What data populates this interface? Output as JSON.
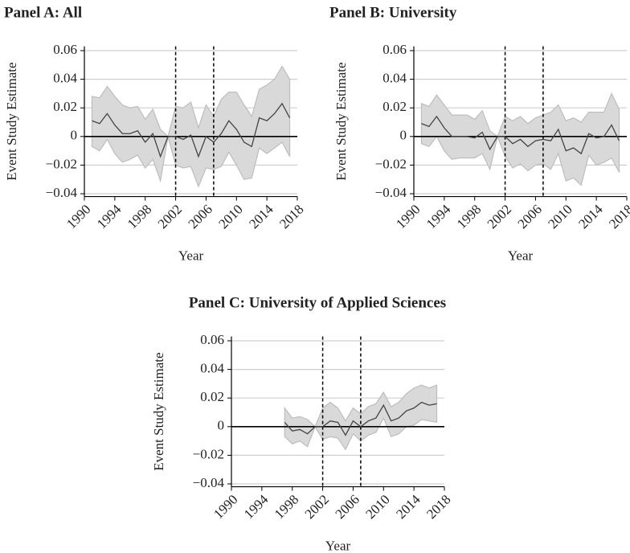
{
  "chart_data": [
    {
      "type": "line",
      "title": "Panel A: All",
      "xlabel": "Year",
      "ylabel": "Event Study Estimate",
      "x": [
        1991,
        1992,
        1993,
        1994,
        1995,
        1996,
        1997,
        1998,
        1999,
        2000,
        2001,
        2002,
        2003,
        2004,
        2005,
        2006,
        2007,
        2008,
        2009,
        2010,
        2011,
        2012,
        2013,
        2014,
        2015,
        2016,
        2017
      ],
      "values": [
        0.011,
        0.009,
        0.016,
        0.008,
        0.002,
        0.002,
        0.004,
        -0.004,
        0.002,
        -0.014,
        0,
        0,
        -0.002,
        0.001,
        -0.014,
        0,
        -0.004,
        0.002,
        0.011,
        0.005,
        -0.004,
        -0.007,
        0.013,
        0.011,
        0.016,
        0.023,
        0.013
      ],
      "ci_upper": [
        0.028,
        0.027,
        0.035,
        0.028,
        0.022,
        0.02,
        0.021,
        0.012,
        0.019,
        0.005,
        0,
        0.021,
        0.02,
        0.024,
        0.006,
        0.022,
        0.014,
        0.026,
        0.031,
        0.031,
        0.022,
        0.014,
        0.033,
        0.036,
        0.04,
        0.049,
        0.04
      ],
      "ci_lower": [
        -0.007,
        -0.01,
        -0.002,
        -0.012,
        -0.018,
        -0.016,
        -0.013,
        -0.022,
        -0.016,
        -0.031,
        0,
        -0.02,
        -0.022,
        -0.021,
        -0.035,
        -0.022,
        -0.023,
        -0.021,
        -0.011,
        -0.02,
        -0.03,
        -0.029,
        -0.008,
        -0.012,
        -0.008,
        -0.004,
        -0.014
      ],
      "color": "#444444",
      "band_color": "#d9d9d9",
      "vlines": [
        2002,
        2007
      ],
      "hline": 0,
      "xlim": [
        1990,
        2018
      ],
      "xticks": [
        1990,
        1994,
        1998,
        2002,
        2006,
        2010,
        2014,
        2018
      ],
      "ylim": [
        -0.042,
        0.063
      ],
      "yticks": [
        {
          "value": -0.04,
          "label": "−0.04"
        },
        {
          "value": -0.02,
          "label": "−0.02"
        },
        0,
        0.02,
        0.04,
        0.06
      ],
      "grid": true
    },
    {
      "type": "line",
      "title": "Panel B: University",
      "xlabel": "Year",
      "ylabel": "Event Study Estimate",
      "x": [
        1991,
        1992,
        1993,
        1994,
        1995,
        1996,
        1997,
        1998,
        1999,
        2000,
        2001,
        2002,
        2003,
        2004,
        2005,
        2006,
        2007,
        2008,
        2009,
        2010,
        2011,
        2012,
        2013,
        2014,
        2015,
        2016,
        2017
      ],
      "values": [
        0.009,
        0.007,
        0.014,
        0.006,
        0,
        0,
        0,
        -0.001,
        0.003,
        -0.009,
        0,
        0,
        -0.005,
        -0.002,
        -0.007,
        -0.003,
        -0.002,
        -0.003,
        0.005,
        -0.01,
        -0.008,
        -0.012,
        0.002,
        -0.001,
        0,
        0.008,
        -0.003
      ],
      "ci_upper": [
        0.023,
        0.021,
        0.029,
        0.022,
        0.015,
        0.015,
        0.015,
        0.012,
        0.018,
        0.004,
        0,
        0.014,
        0.011,
        0.014,
        0.009,
        0.013,
        0.015,
        0.017,
        0.022,
        0.011,
        0.013,
        0.01,
        0.017,
        0.017,
        0.017,
        0.03,
        0.019
      ],
      "ci_lower": [
        -0.005,
        -0.007,
        0,
        -0.01,
        -0.016,
        -0.015,
        -0.015,
        -0.015,
        -0.012,
        -0.023,
        0,
        -0.014,
        -0.022,
        -0.019,
        -0.024,
        -0.02,
        -0.019,
        -0.023,
        -0.012,
        -0.031,
        -0.029,
        -0.034,
        -0.013,
        -0.02,
        -0.018,
        -0.015,
        -0.025
      ],
      "color": "#444444",
      "band_color": "#d9d9d9",
      "vlines": [
        2002,
        2007
      ],
      "hline": 0,
      "xlim": [
        1990,
        2018
      ],
      "xticks": [
        1990,
        1994,
        1998,
        2002,
        2006,
        2010,
        2014,
        2018
      ],
      "ylim": [
        -0.042,
        0.063
      ],
      "yticks": [
        {
          "value": -0.04,
          "label": "−0.04"
        },
        {
          "value": -0.02,
          "label": "−0.02"
        },
        0,
        0.02,
        0.04,
        0.06
      ],
      "grid": true
    },
    {
      "type": "line",
      "title": "Panel C: University of Applied Sciences",
      "xlabel": "Year",
      "ylabel": "Event Study Estimate",
      "x": [
        1997,
        1998,
        1999,
        2000,
        2001,
        2002,
        2003,
        2004,
        2005,
        2006,
        2007,
        2008,
        2009,
        2010,
        2011,
        2012,
        2013,
        2014,
        2015,
        2016,
        2017
      ],
      "values": [
        0.003,
        -0.003,
        -0.002,
        -0.005,
        0,
        0,
        0.004,
        0.003,
        -0.006,
        0.004,
        0,
        0.004,
        0.006,
        0.015,
        0.004,
        0.006,
        0.011,
        0.013,
        0.017,
        0.015,
        0.016
      ],
      "ci_upper": [
        0.013,
        0.006,
        0.007,
        0.005,
        0,
        0.013,
        0.017,
        0.013,
        0.004,
        0.013,
        0.009,
        0.014,
        0.016,
        0.024,
        0.014,
        0.017,
        0.023,
        0.027,
        0.029,
        0.027,
        0.029
      ],
      "ci_lower": [
        -0.007,
        -0.012,
        -0.01,
        -0.014,
        0,
        -0.009,
        -0.007,
        -0.008,
        -0.016,
        -0.005,
        -0.01,
        -0.006,
        -0.004,
        0.006,
        -0.007,
        -0.005,
        0,
        0.001,
        0.005,
        0.004,
        0.003
      ],
      "color": "#444444",
      "band_color": "#d9d9d9",
      "vlines": [
        2002,
        2007
      ],
      "hline": 0,
      "xlim": [
        1990,
        2018
      ],
      "xticks": [
        1990,
        1994,
        1998,
        2002,
        2006,
        2010,
        2014,
        2018
      ],
      "ylim": [
        -0.042,
        0.063
      ],
      "yticks": [
        {
          "value": -0.04,
          "label": "−0.04"
        },
        {
          "value": -0.02,
          "label": "−0.02"
        },
        0,
        0.02,
        0.04,
        0.06
      ],
      "grid": true
    }
  ]
}
